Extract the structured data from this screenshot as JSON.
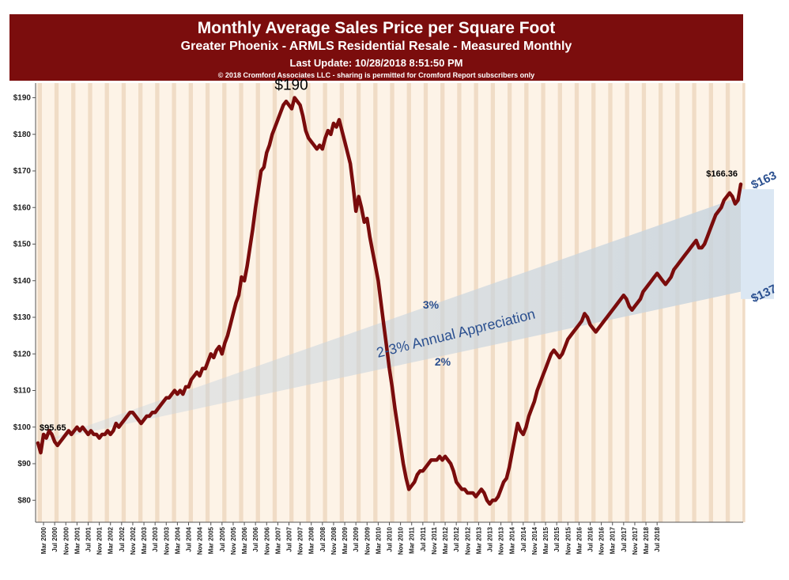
{
  "header": {
    "title": "Monthly Average Sales Price per Square Foot",
    "subtitle": "Greater Phoenix - ARMLS Residential Resale - Measured Monthly",
    "update": "Last Update: 10/28/2018 8:51:50 PM",
    "copyright": "© 2018 Cromford Associates LLC - sharing is permitted for Cromford Report subscribers only"
  },
  "colors": {
    "line": "#7a0c0c",
    "header_bg": "#7b0d0d",
    "stripe_light": "#fdf3e7",
    "stripe_dark": "#f0dcc6",
    "band": "#c8d4de",
    "band_end": "#dbe7f3",
    "annotation_blue": "#2a4f8f"
  },
  "annotations": {
    "peak": "$190",
    "start": "$95.65",
    "end": "$166.36",
    "upper": "$163",
    "lower": "$137",
    "pct3": "3%",
    "pct2": "2%",
    "band_label": "2-3% Annual Appreciation"
  },
  "chart_data": {
    "type": "line",
    "title": "Monthly Average Sales Price per Square Foot",
    "ylim": [
      74,
      194
    ],
    "yticks": [
      "$80",
      "$90",
      "$100",
      "$110",
      "$120",
      "$130",
      "$140",
      "$150",
      "$160",
      "$170",
      "$180",
      "$190"
    ],
    "xticks": [
      "Mar 2000",
      "Jul 2000",
      "Nov 2000",
      "Mar 2001",
      "Jul 2001",
      "Nov 2001",
      "Mar 2002",
      "Jul 2002",
      "Nov 2002",
      "Mar 2003",
      "Jul 2003",
      "Nov 2003",
      "Mar 2004",
      "Jul 2004",
      "Nov 2004",
      "Mar 2005",
      "Jul 2005",
      "Nov 2005",
      "Mar 2006",
      "Jul 2006",
      "Nov 2006",
      "Mar 2007",
      "Jul 2007",
      "Nov 2007",
      "Mar 2008",
      "Jul 2008",
      "Nov 2008",
      "Mar 2009",
      "Jul 2009",
      "Nov 2009",
      "Mar 2010",
      "Jul 2010",
      "Nov 2010",
      "Mar 2011",
      "Jul 2011",
      "Nov 2011",
      "Mar 2012",
      "Jul 2012",
      "Nov 2012",
      "Mar 2013",
      "Jul 2013",
      "Nov 2013",
      "Mar 2014",
      "Jul 2014",
      "Nov 2014",
      "Mar 2015",
      "Jul 2015",
      "Nov 2015",
      "Mar 2016",
      "Jul 2016",
      "Nov 2016",
      "Mar 2017",
      "Jul 2017",
      "Nov 2017",
      "Mar 2018",
      "Jul 2018"
    ],
    "grid": false,
    "series": [
      {
        "x_start": "Jan 2000",
        "frequency": "monthly",
        "values": [
          95.65,
          93,
          98,
          97,
          99,
          98,
          96,
          95,
          96,
          97,
          98,
          99,
          98,
          99,
          100,
          99,
          100,
          99,
          98,
          99,
          98,
          98,
          97,
          98,
          98,
          99,
          98,
          99,
          101,
          100,
          101,
          102,
          103,
          104,
          104,
          103,
          102,
          101,
          102,
          103,
          103,
          104,
          104,
          105,
          106,
          107,
          108,
          108,
          109,
          110,
          109,
          110,
          109,
          111,
          111,
          113,
          114,
          115,
          114,
          116,
          116,
          118,
          120,
          119,
          121,
          122,
          120,
          123,
          125,
          128,
          131,
          134,
          136,
          141,
          140,
          144,
          149,
          154,
          160,
          165,
          170,
          171,
          175,
          177,
          180,
          182,
          184,
          186,
          188,
          189,
          188,
          187,
          190,
          189,
          188,
          185,
          181,
          179,
          178,
          177,
          176,
          177,
          176,
          179,
          181,
          180,
          183,
          182,
          184,
          181,
          178,
          175,
          172,
          166,
          159,
          163,
          160,
          156,
          157,
          152,
          148,
          144,
          140,
          134,
          128,
          122,
          116,
          111,
          105,
          100,
          95,
          90,
          86,
          83,
          84,
          85,
          87,
          88,
          88,
          89,
          90,
          91,
          91,
          91,
          92,
          91,
          92,
          91,
          90,
          88,
          85,
          84,
          83,
          83,
          82,
          82,
          82,
          81,
          82,
          83,
          82,
          80,
          79,
          80,
          80,
          81,
          83,
          85,
          86,
          89,
          93,
          97,
          101,
          99,
          98,
          100,
          103,
          105,
          107,
          110,
          112,
          114,
          116,
          118,
          120,
          121,
          120,
          119,
          120,
          122,
          124,
          125,
          126,
          127,
          128,
          129,
          131,
          130,
          128,
          127,
          126,
          127,
          128,
          129,
          130,
          131,
          132,
          133,
          134,
          135,
          136,
          135,
          133,
          132,
          133,
          134,
          135,
          137,
          138,
          139,
          140,
          141,
          142,
          141,
          140,
          139,
          140,
          141,
          143,
          144,
          145,
          146,
          147,
          148,
          149,
          150,
          151,
          149,
          149,
          150,
          152,
          154,
          156,
          158,
          159,
          160,
          162,
          163,
          164,
          163,
          161,
          162,
          166.36
        ]
      }
    ],
    "trend_band": {
      "start_value": 95.65,
      "upper_label_value": 163,
      "lower_label_value": 137,
      "upper_rate": "3%",
      "lower_rate": "2%"
    }
  }
}
